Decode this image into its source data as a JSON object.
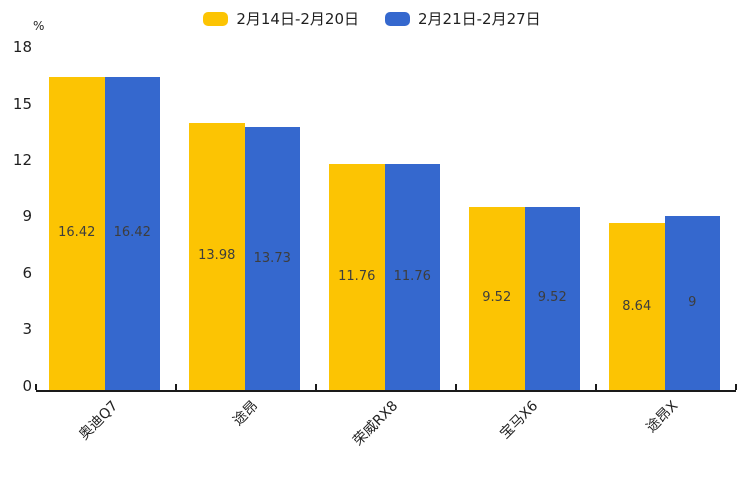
{
  "chart_data": {
    "type": "bar",
    "title": "",
    "xlabel": "",
    "ylabel": "%",
    "categories": [
      "奥迪Q7",
      "途昂",
      "荣威RX8",
      "宝马X6",
      "途昂X"
    ],
    "series": [
      {
        "name": "2月14日-2月20日",
        "color": "#FCC403",
        "values": [
          16.42,
          13.98,
          11.76,
          9.52,
          8.64
        ],
        "value_labels": [
          "16.42",
          "13.98",
          "11.76",
          "9.52",
          "8.64"
        ]
      },
      {
        "name": "2月21日-2月27日",
        "color": "#3568CE",
        "values": [
          16.42,
          13.73,
          11.76,
          9.52,
          9
        ],
        "value_labels": [
          "16.42",
          "13.73",
          "11.76",
          "9.52",
          "9"
        ]
      }
    ],
    "yticks": [
      0,
      3,
      6,
      9,
      12,
      15,
      18
    ],
    "ylim": [
      0,
      18
    ],
    "grid": false,
    "legend_position": "top",
    "value_labels_position": "inside-center",
    "x_label_rotation_deg": -45,
    "axis_color": "#1a1a1a",
    "text_color": "#1f1f1f",
    "value_text_color": "#3d3d3d",
    "background_color": "#ffffff"
  }
}
